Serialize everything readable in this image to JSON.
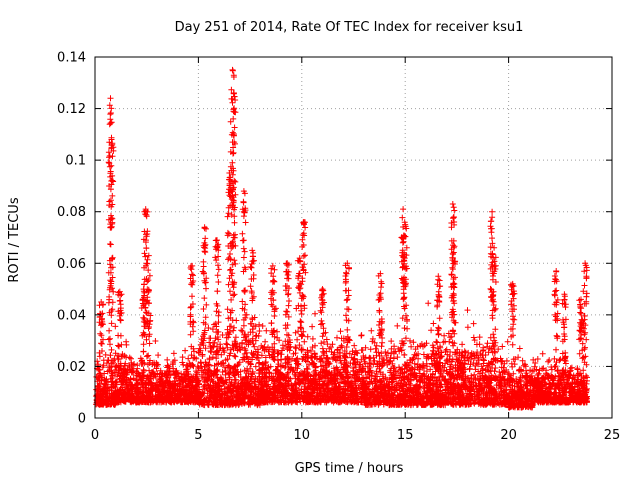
{
  "chart_data": {
    "type": "scatter",
    "title": "Day 251 of 2014, Rate Of TEC Index for receiver ksu1",
    "xlabel": "GPS time / hours",
    "ylabel": "ROTI / TECUs",
    "xlim": [
      0,
      25
    ],
    "ylim": [
      0,
      0.14
    ],
    "x_ticks": [
      "0",
      "5",
      "10",
      "15",
      "20",
      "25"
    ],
    "y_ticks": [
      "0",
      "0.02",
      "0.04",
      "0.06",
      "0.08",
      "0.1",
      "0.12",
      "0.14"
    ],
    "grid": true,
    "marker": "+",
    "color": "#ff0000",
    "series": [
      {
        "name": "ROTI",
        "x_range": [
          0.05,
          23.8
        ],
        "base_level": 0.012,
        "segments": [
          {
            "x0": 0.05,
            "x1": 1.0,
            "lo": 0.005,
            "hi": 0.03
          },
          {
            "x0": 1.0,
            "x1": 1.6,
            "lo": 0.006,
            "hi": 0.03
          },
          {
            "x0": 1.6,
            "x1": 3.0,
            "lo": 0.006,
            "hi": 0.025
          },
          {
            "x0": 3.0,
            "x1": 5.0,
            "lo": 0.006,
            "hi": 0.025
          },
          {
            "x0": 5.0,
            "x1": 8.0,
            "lo": 0.005,
            "hi": 0.04
          },
          {
            "x0": 8.0,
            "x1": 13.0,
            "lo": 0.006,
            "hi": 0.035
          },
          {
            "x0": 13.0,
            "x1": 20.0,
            "lo": 0.005,
            "hi": 0.032
          },
          {
            "x0": 20.0,
            "x1": 21.2,
            "lo": 0.004,
            "hi": 0.025
          },
          {
            "x0": 21.2,
            "x1": 23.8,
            "lo": 0.006,
            "hi": 0.022
          }
        ],
        "peaks": [
          {
            "x": 0.3,
            "y": 0.045
          },
          {
            "x": 0.75,
            "y": 0.124
          },
          {
            "x": 0.8,
            "y": 0.108
          },
          {
            "x": 1.2,
            "y": 0.049
          },
          {
            "x": 2.45,
            "y": 0.081
          },
          {
            "x": 2.6,
            "y": 0.063
          },
          {
            "x": 2.35,
            "y": 0.05
          },
          {
            "x": 4.7,
            "y": 0.059
          },
          {
            "x": 5.3,
            "y": 0.074
          },
          {
            "x": 5.9,
            "y": 0.069
          },
          {
            "x": 6.5,
            "y": 0.095
          },
          {
            "x": 6.65,
            "y": 0.135
          },
          {
            "x": 6.7,
            "y": 0.126
          },
          {
            "x": 7.2,
            "y": 0.088
          },
          {
            "x": 7.6,
            "y": 0.065
          },
          {
            "x": 8.6,
            "y": 0.059
          },
          {
            "x": 9.3,
            "y": 0.06
          },
          {
            "x": 9.9,
            "y": 0.062
          },
          {
            "x": 10.1,
            "y": 0.076
          },
          {
            "x": 11.0,
            "y": 0.05
          },
          {
            "x": 12.2,
            "y": 0.06
          },
          {
            "x": 13.8,
            "y": 0.056
          },
          {
            "x": 14.9,
            "y": 0.081
          },
          {
            "x": 15.0,
            "y": 0.075
          },
          {
            "x": 16.6,
            "y": 0.055
          },
          {
            "x": 17.3,
            "y": 0.083
          },
          {
            "x": 17.35,
            "y": 0.066
          },
          {
            "x": 19.2,
            "y": 0.08
          },
          {
            "x": 19.3,
            "y": 0.066
          },
          {
            "x": 20.2,
            "y": 0.052
          },
          {
            "x": 22.3,
            "y": 0.057
          },
          {
            "x": 22.7,
            "y": 0.048
          },
          {
            "x": 23.7,
            "y": 0.06
          },
          {
            "x": 23.5,
            "y": 0.046
          }
        ]
      }
    ]
  }
}
